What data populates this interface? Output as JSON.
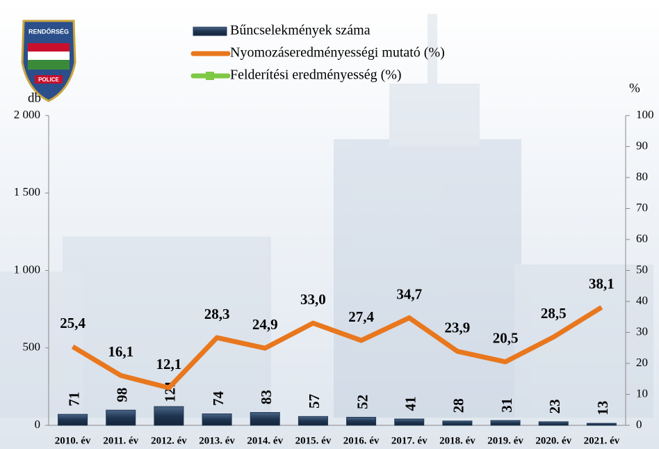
{
  "logo": {
    "top_text": "RENDŐRSÉG",
    "bottom_text": "POLICE"
  },
  "chart_data": {
    "type": "bar",
    "categories": [
      "2010. év",
      "2011. év",
      "2012. év",
      "2013. év",
      "2014. év",
      "2015. év",
      "2016. év",
      "2017. év",
      "2018. év",
      "2019. év",
      "2020. év",
      "2021. év"
    ],
    "y_label": "db",
    "y2_label": "%",
    "ylim": [
      0,
      2000
    ],
    "yticks": [
      0,
      500,
      {
        "value": 1000,
        "label": "1 000"
      },
      {
        "value": 1500,
        "label": "1 500"
      },
      {
        "value": 2000,
        "label": "2 000"
      }
    ],
    "y2lim": [
      0,
      100
    ],
    "y2ticks": [
      0,
      10,
      20,
      30,
      40,
      50,
      60,
      70,
      80,
      90,
      100
    ],
    "series": [
      {
        "name": "Bűncselekmények száma",
        "type": "bar",
        "color": "#1f3550",
        "values": [
          71,
          98,
          121,
          74,
          83,
          57,
          52,
          41,
          28,
          31,
          23,
          13
        ]
      },
      {
        "name": "Nyomozáseredményességi mutató (%)",
        "type": "line",
        "axis": "y2",
        "color": "#e8771e",
        "values": [
          25.4,
          16.1,
          12.1,
          28.3,
          24.9,
          33.0,
          27.4,
          34.7,
          23.9,
          20.5,
          28.5,
          38.1
        ],
        "value_labels": [
          "25,4",
          "16,1",
          "12,1",
          "28,3",
          "24,9",
          "33,0",
          "27,4",
          "34,7",
          "23,9",
          "20,5",
          "28,5",
          "38,1"
        ]
      },
      {
        "name": "Felderítési eredményesség (%)",
        "type": "line",
        "axis": "y2",
        "color": "#7ec845",
        "values": [
          null,
          null,
          null,
          null,
          null,
          null,
          null,
          null,
          null,
          null,
          null,
          null
        ]
      }
    ]
  }
}
